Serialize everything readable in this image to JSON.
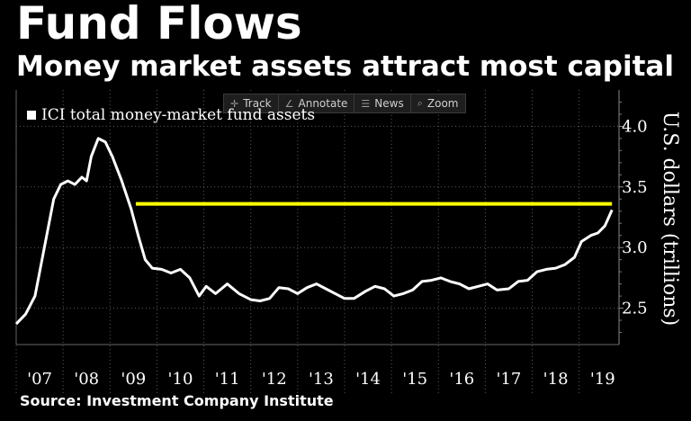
{
  "title": "Fund Flows",
  "subtitle": "Money market assets attract most capital",
  "toolbar": {
    "items": [
      {
        "label": "Track",
        "icon": "crosshair-icon"
      },
      {
        "label": "Annotate",
        "icon": "pencil-icon"
      },
      {
        "label": "News",
        "icon": "news-icon"
      },
      {
        "label": "Zoom",
        "icon": "magnifier-icon"
      }
    ]
  },
  "source": "Source: Investment Company Institute",
  "chart_data": {
    "type": "line",
    "ylabel": "U.S. dollars (trillions)",
    "ylim": [
      2.2,
      4.3
    ],
    "yticks": [
      2.5,
      3.0,
      3.5,
      4.0
    ],
    "ytick_labels": [
      "2.5",
      "3.0",
      "3.5",
      "4.0"
    ],
    "xlim": [
      2007.0,
      2019.85
    ],
    "xticks": [
      2007,
      2008,
      2009,
      2010,
      2011,
      2012,
      2013,
      2014,
      2015,
      2016,
      2017,
      2018,
      2019
    ],
    "xtick_labels": [
      "'07",
      "'08",
      "'09",
      "'10",
      "'11",
      "'12",
      "'13",
      "'14",
      "'15",
      "'16",
      "'17",
      "'18",
      "'19"
    ],
    "grid": true,
    "legend_position": "top-left",
    "series": [
      {
        "name": "ICI total money-market fund assets",
        "color": "#ffffff",
        "points": [
          [
            2007.0,
            2.37
          ],
          [
            2007.2,
            2.45
          ],
          [
            2007.4,
            2.6
          ],
          [
            2007.6,
            3.0
          ],
          [
            2007.8,
            3.4
          ],
          [
            2007.95,
            3.52
          ],
          [
            2008.1,
            3.55
          ],
          [
            2008.25,
            3.52
          ],
          [
            2008.4,
            3.58
          ],
          [
            2008.5,
            3.55
          ],
          [
            2008.6,
            3.75
          ],
          [
            2008.75,
            3.9
          ],
          [
            2008.9,
            3.87
          ],
          [
            2009.05,
            3.75
          ],
          [
            2009.25,
            3.55
          ],
          [
            2009.45,
            3.32
          ],
          [
            2009.6,
            3.1
          ],
          [
            2009.75,
            2.9
          ],
          [
            2009.9,
            2.83
          ],
          [
            2010.1,
            2.82
          ],
          [
            2010.3,
            2.79
          ],
          [
            2010.5,
            2.82
          ],
          [
            2010.7,
            2.75
          ],
          [
            2010.9,
            2.6
          ],
          [
            2011.05,
            2.68
          ],
          [
            2011.25,
            2.62
          ],
          [
            2011.5,
            2.7
          ],
          [
            2011.75,
            2.62
          ],
          [
            2012.0,
            2.57
          ],
          [
            2012.2,
            2.56
          ],
          [
            2012.4,
            2.58
          ],
          [
            2012.6,
            2.67
          ],
          [
            2012.8,
            2.66
          ],
          [
            2013.0,
            2.62
          ],
          [
            2013.2,
            2.67
          ],
          [
            2013.4,
            2.7
          ],
          [
            2013.6,
            2.66
          ],
          [
            2013.8,
            2.62
          ],
          [
            2014.0,
            2.58
          ],
          [
            2014.2,
            2.58
          ],
          [
            2014.45,
            2.64
          ],
          [
            2014.65,
            2.68
          ],
          [
            2014.85,
            2.66
          ],
          [
            2015.05,
            2.6
          ],
          [
            2015.25,
            2.62
          ],
          [
            2015.45,
            2.65
          ],
          [
            2015.65,
            2.72
          ],
          [
            2015.85,
            2.73
          ],
          [
            2016.05,
            2.75
          ],
          [
            2016.25,
            2.72
          ],
          [
            2016.45,
            2.7
          ],
          [
            2016.65,
            2.66
          ],
          [
            2016.85,
            2.68
          ],
          [
            2017.05,
            2.7
          ],
          [
            2017.25,
            2.65
          ],
          [
            2017.5,
            2.66
          ],
          [
            2017.7,
            2.72
          ],
          [
            2017.9,
            2.73
          ],
          [
            2018.1,
            2.8
          ],
          [
            2018.3,
            2.82
          ],
          [
            2018.5,
            2.83
          ],
          [
            2018.7,
            2.86
          ],
          [
            2018.9,
            2.92
          ],
          [
            2019.05,
            3.05
          ],
          [
            2019.25,
            3.1
          ],
          [
            2019.4,
            3.12
          ],
          [
            2019.55,
            3.18
          ],
          [
            2019.7,
            3.31
          ]
        ]
      }
    ],
    "reference_line": {
      "color": "#ffff00",
      "y": 3.36,
      "x_start": 2009.55,
      "x_end": 2019.7
    }
  }
}
